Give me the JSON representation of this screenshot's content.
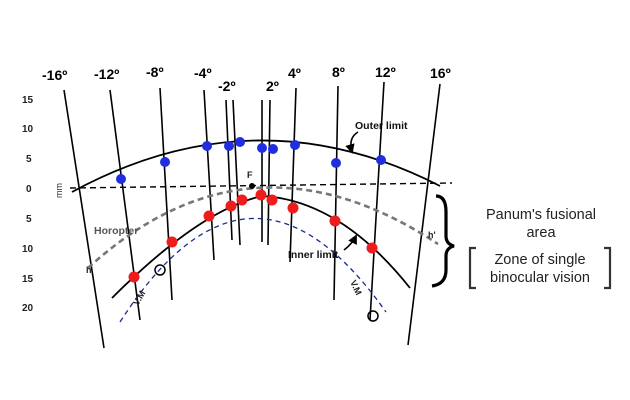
{
  "degree_labels": [
    "-16º",
    "-12º",
    "-8º",
    "-4º",
    "-2º",
    "2º",
    "4º",
    "8º",
    "12º",
    "16º"
  ],
  "top_scale_ticks": [
    "15",
    "10",
    "5",
    "0"
  ],
  "bottom_scale_ticks": [
    "5",
    "10",
    "15",
    "20"
  ],
  "unit_label": "mm",
  "labels": {
    "outer_limit": "Outer limit",
    "inner_limit": "Inner limit",
    "horopter": "Horopter",
    "fixation": "F",
    "h_left": "h",
    "h_right": "h'",
    "vm_left": "V.M",
    "vm_right": "V.M"
  },
  "panum": {
    "line1": "Panum's fusional",
    "line2": "area",
    "zone_line1": "Zone of single",
    "zone_line2": "binocular vision"
  },
  "colors": {
    "outer_points": "#1f2fe0",
    "inner_points": "#ee1c1c",
    "horopter": "#777777",
    "vm_curve": "#1a2a8a"
  }
}
